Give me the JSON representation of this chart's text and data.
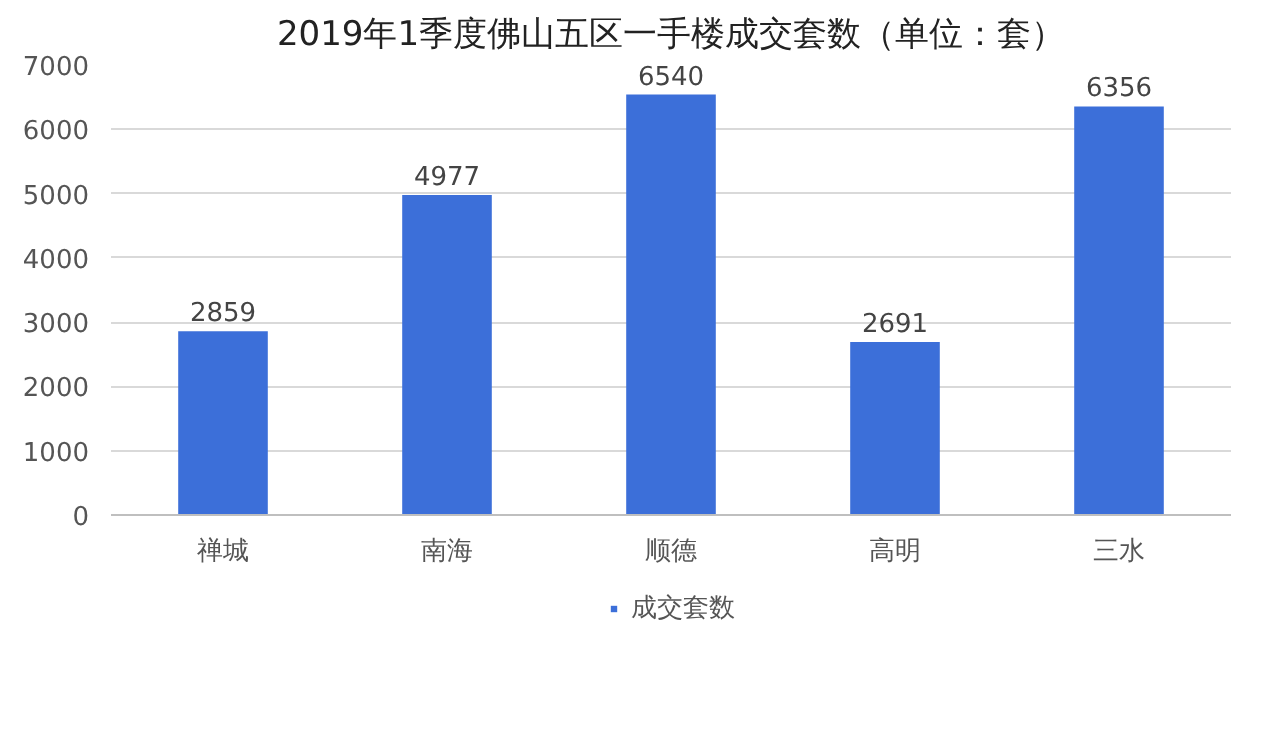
{
  "chart_data": {
    "type": "bar",
    "title": "2019年1季度佛山五区一手楼成交套数（单位：套）",
    "categories": [
      "禅城",
      "南海",
      "顺德",
      "高明",
      "三水"
    ],
    "series": [
      {
        "name": "成交套数",
        "color": "#3c6fd9",
        "values": [
          2859,
          4977,
          6540,
          2691,
          6356
        ]
      }
    ],
    "ylim": [
      0,
      7000
    ],
    "yticks": [
      0,
      1000,
      2000,
      3000,
      4000,
      5000,
      6000,
      7000
    ],
    "grid": "y",
    "legend": "bottom",
    "data_labels": true
  }
}
